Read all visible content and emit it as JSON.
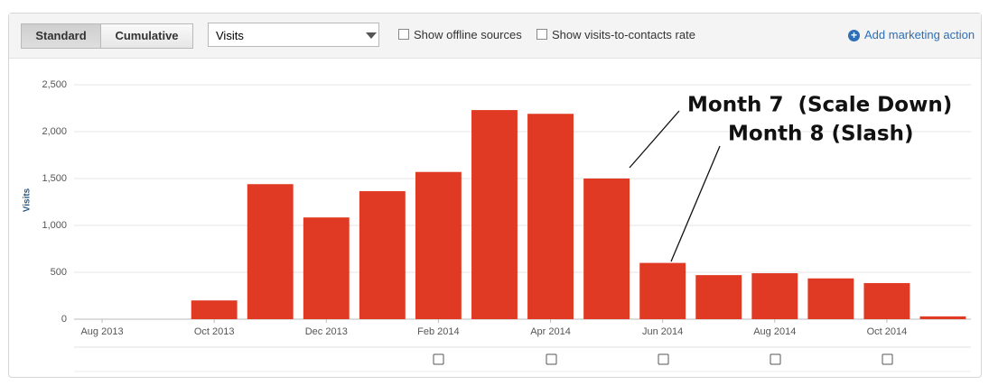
{
  "toolbar": {
    "buttons": [
      "Standard",
      "Cumulative"
    ],
    "select": "Visits",
    "checkboxes": [
      "Show offline sources",
      "Show visits-to-contacts rate"
    ],
    "link": "Add marketing action"
  },
  "chart_data": {
    "type": "bar",
    "y_label": "Visits",
    "categories": [
      "Aug 2013",
      null,
      "Oct 2013",
      null,
      "Dec 2013",
      null,
      "Feb 2014",
      null,
      "Apr 2014",
      null,
      "Jun 2014",
      null,
      "Aug 2014",
      null,
      "Oct 2014",
      null
    ],
    "values": [
      0,
      0,
      200,
      1440,
      1085,
      1365,
      1570,
      2230,
      2190,
      1500,
      600,
      470,
      490,
      435,
      385,
      30
    ],
    "color": "#e03a24",
    "ylim": [
      0,
      2500
    ],
    "yticks": [
      0,
      {
        "value": 500,
        "label": "500"
      },
      {
        "value": 1000,
        "label": "1,000"
      },
      {
        "value": 1500,
        "label": "1,500"
      },
      {
        "value": 2000,
        "label": "2,000"
      },
      {
        "value": 2500,
        "label": "2,500"
      }
    ],
    "grid": true,
    "annotations": [
      "Month 7  (Scale Down)",
      "Month 8 (Slash)"
    ]
  }
}
